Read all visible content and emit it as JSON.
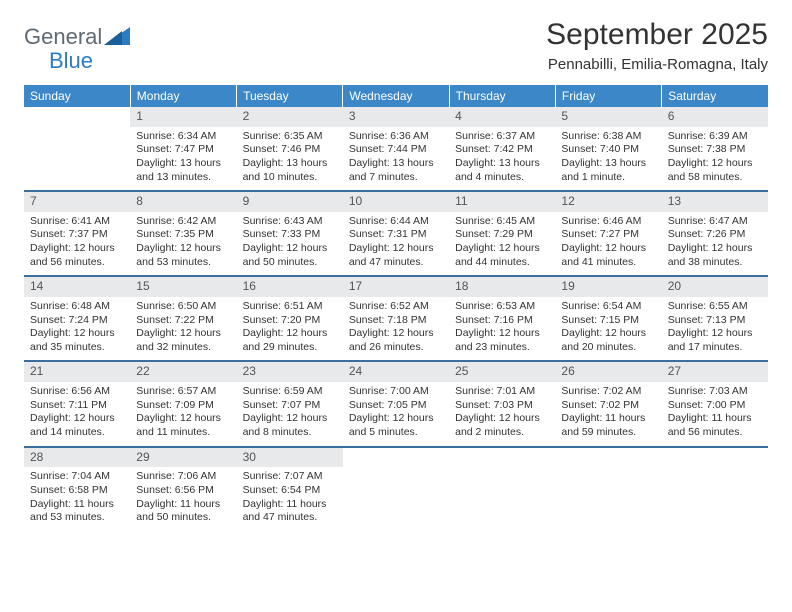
{
  "logo": {
    "word1": "General",
    "word2": "Blue"
  },
  "title": "September 2025",
  "subtitle": "Pennabilli, Emilia-Romagna, Italy",
  "colors": {
    "header_bg": "#3b87c8",
    "header_text": "#ffffff",
    "daynum_bg": "#e8e9ea",
    "row_divider": "#3b6fa0",
    "logo_gray": "#5f6a72",
    "logo_blue": "#2d7cc0",
    "text": "#333333",
    "background": "#ffffff"
  },
  "typography": {
    "title_fontsize": 30,
    "subtitle_fontsize": 15,
    "header_fontsize": 12,
    "cell_fontsize": 10.5
  },
  "weekdays": [
    "Sunday",
    "Monday",
    "Tuesday",
    "Wednesday",
    "Thursday",
    "Friday",
    "Saturday"
  ],
  "weeks": [
    [
      {
        "empty": true
      },
      {
        "num": "1",
        "sunrise": "Sunrise: 6:34 AM",
        "sunset": "Sunset: 7:47 PM",
        "daylight": "Daylight: 13 hours and 13 minutes."
      },
      {
        "num": "2",
        "sunrise": "Sunrise: 6:35 AM",
        "sunset": "Sunset: 7:46 PM",
        "daylight": "Daylight: 13 hours and 10 minutes."
      },
      {
        "num": "3",
        "sunrise": "Sunrise: 6:36 AM",
        "sunset": "Sunset: 7:44 PM",
        "daylight": "Daylight: 13 hours and 7 minutes."
      },
      {
        "num": "4",
        "sunrise": "Sunrise: 6:37 AM",
        "sunset": "Sunset: 7:42 PM",
        "daylight": "Daylight: 13 hours and 4 minutes."
      },
      {
        "num": "5",
        "sunrise": "Sunrise: 6:38 AM",
        "sunset": "Sunset: 7:40 PM",
        "daylight": "Daylight: 13 hours and 1 minute."
      },
      {
        "num": "6",
        "sunrise": "Sunrise: 6:39 AM",
        "sunset": "Sunset: 7:38 PM",
        "daylight": "Daylight: 12 hours and 58 minutes."
      }
    ],
    [
      {
        "num": "7",
        "sunrise": "Sunrise: 6:41 AM",
        "sunset": "Sunset: 7:37 PM",
        "daylight": "Daylight: 12 hours and 56 minutes."
      },
      {
        "num": "8",
        "sunrise": "Sunrise: 6:42 AM",
        "sunset": "Sunset: 7:35 PM",
        "daylight": "Daylight: 12 hours and 53 minutes."
      },
      {
        "num": "9",
        "sunrise": "Sunrise: 6:43 AM",
        "sunset": "Sunset: 7:33 PM",
        "daylight": "Daylight: 12 hours and 50 minutes."
      },
      {
        "num": "10",
        "sunrise": "Sunrise: 6:44 AM",
        "sunset": "Sunset: 7:31 PM",
        "daylight": "Daylight: 12 hours and 47 minutes."
      },
      {
        "num": "11",
        "sunrise": "Sunrise: 6:45 AM",
        "sunset": "Sunset: 7:29 PM",
        "daylight": "Daylight: 12 hours and 44 minutes."
      },
      {
        "num": "12",
        "sunrise": "Sunrise: 6:46 AM",
        "sunset": "Sunset: 7:27 PM",
        "daylight": "Daylight: 12 hours and 41 minutes."
      },
      {
        "num": "13",
        "sunrise": "Sunrise: 6:47 AM",
        "sunset": "Sunset: 7:26 PM",
        "daylight": "Daylight: 12 hours and 38 minutes."
      }
    ],
    [
      {
        "num": "14",
        "sunrise": "Sunrise: 6:48 AM",
        "sunset": "Sunset: 7:24 PM",
        "daylight": "Daylight: 12 hours and 35 minutes."
      },
      {
        "num": "15",
        "sunrise": "Sunrise: 6:50 AM",
        "sunset": "Sunset: 7:22 PM",
        "daylight": "Daylight: 12 hours and 32 minutes."
      },
      {
        "num": "16",
        "sunrise": "Sunrise: 6:51 AM",
        "sunset": "Sunset: 7:20 PM",
        "daylight": "Daylight: 12 hours and 29 minutes."
      },
      {
        "num": "17",
        "sunrise": "Sunrise: 6:52 AM",
        "sunset": "Sunset: 7:18 PM",
        "daylight": "Daylight: 12 hours and 26 minutes."
      },
      {
        "num": "18",
        "sunrise": "Sunrise: 6:53 AM",
        "sunset": "Sunset: 7:16 PM",
        "daylight": "Daylight: 12 hours and 23 minutes."
      },
      {
        "num": "19",
        "sunrise": "Sunrise: 6:54 AM",
        "sunset": "Sunset: 7:15 PM",
        "daylight": "Daylight: 12 hours and 20 minutes."
      },
      {
        "num": "20",
        "sunrise": "Sunrise: 6:55 AM",
        "sunset": "Sunset: 7:13 PM",
        "daylight": "Daylight: 12 hours and 17 minutes."
      }
    ],
    [
      {
        "num": "21",
        "sunrise": "Sunrise: 6:56 AM",
        "sunset": "Sunset: 7:11 PM",
        "daylight": "Daylight: 12 hours and 14 minutes."
      },
      {
        "num": "22",
        "sunrise": "Sunrise: 6:57 AM",
        "sunset": "Sunset: 7:09 PM",
        "daylight": "Daylight: 12 hours and 11 minutes."
      },
      {
        "num": "23",
        "sunrise": "Sunrise: 6:59 AM",
        "sunset": "Sunset: 7:07 PM",
        "daylight": "Daylight: 12 hours and 8 minutes."
      },
      {
        "num": "24",
        "sunrise": "Sunrise: 7:00 AM",
        "sunset": "Sunset: 7:05 PM",
        "daylight": "Daylight: 12 hours and 5 minutes."
      },
      {
        "num": "25",
        "sunrise": "Sunrise: 7:01 AM",
        "sunset": "Sunset: 7:03 PM",
        "daylight": "Daylight: 12 hours and 2 minutes."
      },
      {
        "num": "26",
        "sunrise": "Sunrise: 7:02 AM",
        "sunset": "Sunset: 7:02 PM",
        "daylight": "Daylight: 11 hours and 59 minutes."
      },
      {
        "num": "27",
        "sunrise": "Sunrise: 7:03 AM",
        "sunset": "Sunset: 7:00 PM",
        "daylight": "Daylight: 11 hours and 56 minutes."
      }
    ],
    [
      {
        "num": "28",
        "sunrise": "Sunrise: 7:04 AM",
        "sunset": "Sunset: 6:58 PM",
        "daylight": "Daylight: 11 hours and 53 minutes."
      },
      {
        "num": "29",
        "sunrise": "Sunrise: 7:06 AM",
        "sunset": "Sunset: 6:56 PM",
        "daylight": "Daylight: 11 hours and 50 minutes."
      },
      {
        "num": "30",
        "sunrise": "Sunrise: 7:07 AM",
        "sunset": "Sunset: 6:54 PM",
        "daylight": "Daylight: 11 hours and 47 minutes."
      },
      {
        "empty": true
      },
      {
        "empty": true
      },
      {
        "empty": true
      },
      {
        "empty": true
      }
    ]
  ]
}
